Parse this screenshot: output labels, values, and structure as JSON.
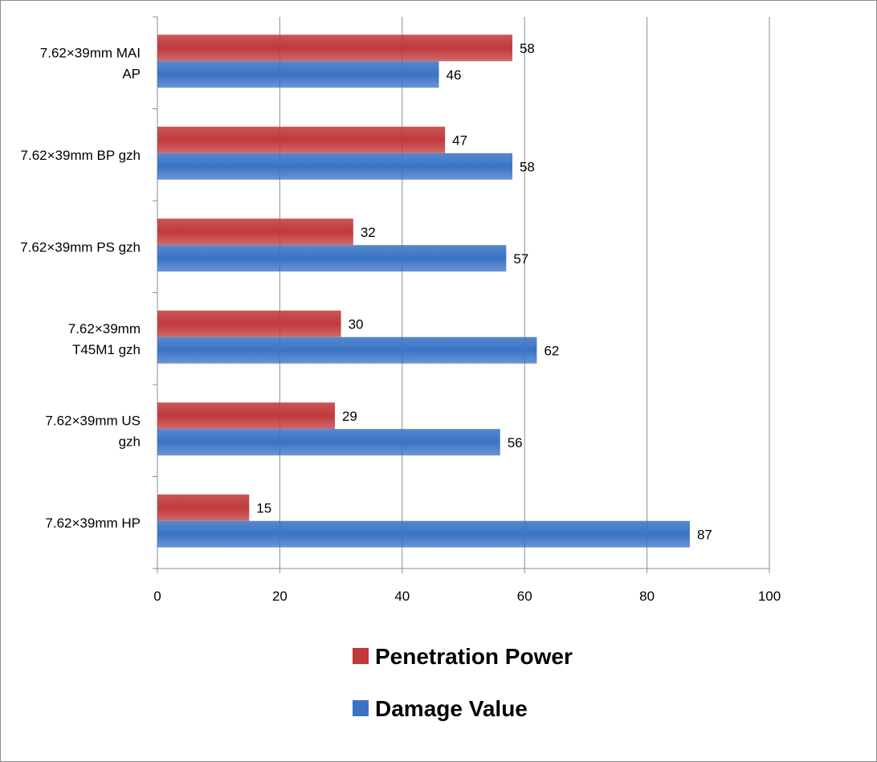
{
  "chart_data": {
    "type": "bar",
    "orientation": "horizontal",
    "categories": [
      [
        "7.62×39mm MAI",
        "AP"
      ],
      [
        "7.62×39mm BP gzh"
      ],
      [
        "7.62×39mm PS gzh"
      ],
      [
        "7.62×39mm",
        "T45M1 gzh"
      ],
      [
        "7.62×39mm US",
        "gzh"
      ],
      [
        "7.62×39mm HP"
      ]
    ],
    "series": [
      {
        "name": "Penetration Power",
        "color": "#c0393b",
        "values": [
          58,
          47,
          32,
          30,
          29,
          15
        ]
      },
      {
        "name": "Damage Value",
        "color": "#3a73c5",
        "values": [
          46,
          58,
          57,
          62,
          56,
          87
        ]
      }
    ],
    "xlim": [
      0,
      100
    ],
    "xticks": [
      0,
      20,
      40,
      60,
      80,
      100
    ],
    "grid": true,
    "data_labels": true,
    "legend_position": "bottom",
    "title": "",
    "xlabel": "",
    "ylabel": ""
  }
}
